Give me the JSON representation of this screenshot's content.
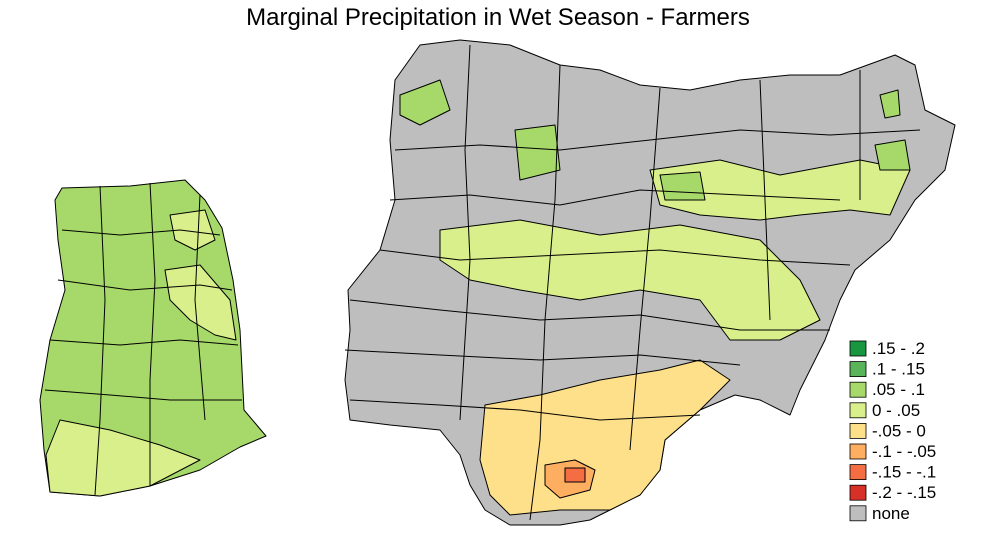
{
  "title": "Marginal Precipitation in Wet Season - Farmers",
  "legend": [
    {
      "label": ".15 - .2",
      "color": "#1a9641"
    },
    {
      "label": ".1 - .15",
      "color": "#5ab45a"
    },
    {
      "label": ".05 - .1",
      "color": "#a6d96a"
    },
    {
      "label": "0 - .05",
      "color": "#d9ef8b"
    },
    {
      "label": "-.05 - 0",
      "color": "#fee08b"
    },
    {
      "label": "-.1 - -.05",
      "color": "#fdae61"
    },
    {
      "label": "-.15 - -.1",
      "color": "#f46d43"
    },
    {
      "label": "-.2 - -.15",
      "color": "#d73027"
    },
    {
      "label": "none",
      "color": "#bebebe"
    }
  ]
}
